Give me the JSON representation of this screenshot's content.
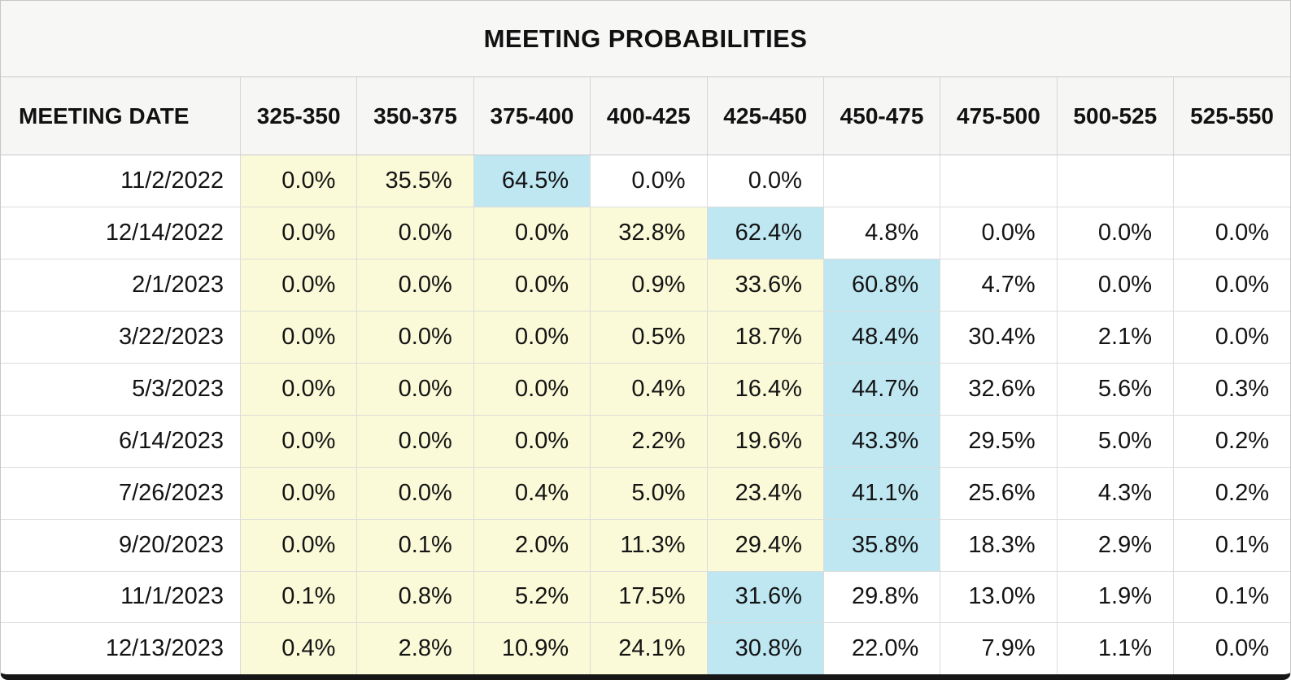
{
  "title": "MEETING PROBABILITIES",
  "colors": {
    "max_highlight": "#bee7f2",
    "below_highlight": "#fafad8",
    "panel_bg": "#f7f7f6",
    "grid_line": "#dcdcdc",
    "bottom_bar": "#161616"
  },
  "chart_data": {
    "type": "table",
    "title": "MEETING PROBABILITIES",
    "columns": [
      "MEETING DATE",
      "325-350",
      "350-375",
      "375-400",
      "400-425",
      "425-450",
      "450-475",
      "475-500",
      "500-525",
      "525-550"
    ],
    "rows": [
      {
        "date": "11/2/2022",
        "values": [
          "0.0%",
          "35.5%",
          "64.5%",
          "0.0%",
          "0.0%",
          "",
          "",
          "",
          ""
        ],
        "styles": [
          "below",
          "below",
          "max",
          "plain",
          "plain",
          "empty",
          "empty",
          "empty",
          "empty"
        ]
      },
      {
        "date": "12/14/2022",
        "values": [
          "0.0%",
          "0.0%",
          "0.0%",
          "32.8%",
          "62.4%",
          "4.8%",
          "0.0%",
          "0.0%",
          "0.0%"
        ],
        "styles": [
          "below",
          "below",
          "below",
          "below",
          "max",
          "plain",
          "plain",
          "plain",
          "plain"
        ]
      },
      {
        "date": "2/1/2023",
        "values": [
          "0.0%",
          "0.0%",
          "0.0%",
          "0.9%",
          "33.6%",
          "60.8%",
          "4.7%",
          "0.0%",
          "0.0%"
        ],
        "styles": [
          "below",
          "below",
          "below",
          "below",
          "below",
          "max",
          "plain",
          "plain",
          "plain"
        ]
      },
      {
        "date": "3/22/2023",
        "values": [
          "0.0%",
          "0.0%",
          "0.0%",
          "0.5%",
          "18.7%",
          "48.4%",
          "30.4%",
          "2.1%",
          "0.0%"
        ],
        "styles": [
          "below",
          "below",
          "below",
          "below",
          "below",
          "max",
          "plain",
          "plain",
          "plain"
        ]
      },
      {
        "date": "5/3/2023",
        "values": [
          "0.0%",
          "0.0%",
          "0.0%",
          "0.4%",
          "16.4%",
          "44.7%",
          "32.6%",
          "5.6%",
          "0.3%"
        ],
        "styles": [
          "below",
          "below",
          "below",
          "below",
          "below",
          "max",
          "plain",
          "plain",
          "plain"
        ]
      },
      {
        "date": "6/14/2023",
        "values": [
          "0.0%",
          "0.0%",
          "0.0%",
          "2.2%",
          "19.6%",
          "43.3%",
          "29.5%",
          "5.0%",
          "0.2%"
        ],
        "styles": [
          "below",
          "below",
          "below",
          "below",
          "below",
          "max",
          "plain",
          "plain",
          "plain"
        ]
      },
      {
        "date": "7/26/2023",
        "values": [
          "0.0%",
          "0.0%",
          "0.4%",
          "5.0%",
          "23.4%",
          "41.1%",
          "25.6%",
          "4.3%",
          "0.2%"
        ],
        "styles": [
          "below",
          "below",
          "below",
          "below",
          "below",
          "max",
          "plain",
          "plain",
          "plain"
        ]
      },
      {
        "date": "9/20/2023",
        "values": [
          "0.0%",
          "0.1%",
          "2.0%",
          "11.3%",
          "29.4%",
          "35.8%",
          "18.3%",
          "2.9%",
          "0.1%"
        ],
        "styles": [
          "below",
          "below",
          "below",
          "below",
          "below",
          "max",
          "plain",
          "plain",
          "plain"
        ]
      },
      {
        "date": "11/1/2023",
        "values": [
          "0.1%",
          "0.8%",
          "5.2%",
          "17.5%",
          "31.6%",
          "29.8%",
          "13.0%",
          "1.9%",
          "0.1%"
        ],
        "styles": [
          "below",
          "below",
          "below",
          "below",
          "max",
          "plain",
          "plain",
          "plain",
          "plain"
        ]
      },
      {
        "date": "12/13/2023",
        "values": [
          "0.4%",
          "2.8%",
          "10.9%",
          "24.1%",
          "30.8%",
          "22.0%",
          "7.9%",
          "1.1%",
          "0.0%"
        ],
        "styles": [
          "below",
          "below",
          "below",
          "below",
          "max",
          "plain",
          "plain",
          "plain",
          "plain"
        ]
      }
    ]
  }
}
